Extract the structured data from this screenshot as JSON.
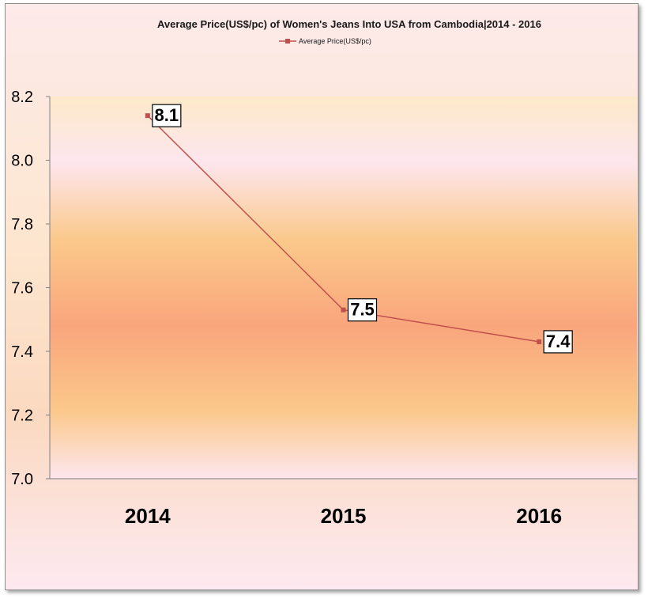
{
  "chart_data": {
    "type": "line",
    "title": "Average Price(US$/pc) of Women's Jeans Into USA from Cambodia|2014 - 2016",
    "categories": [
      "2014",
      "2015",
      "2016"
    ],
    "series": [
      {
        "name": "Average Price(US$/pc)",
        "values": [
          8.14,
          7.53,
          7.43
        ],
        "labels": [
          "8.1",
          "7.5",
          "7.4"
        ]
      }
    ],
    "ylim": [
      7.0,
      8.2
    ],
    "yticks": [
      "7.0",
      "7.2",
      "7.4",
      "7.6",
      "7.8",
      "8.0",
      "8.2"
    ],
    "legend": "top",
    "grid": false,
    "colors": {
      "line": "#c0504d"
    }
  }
}
